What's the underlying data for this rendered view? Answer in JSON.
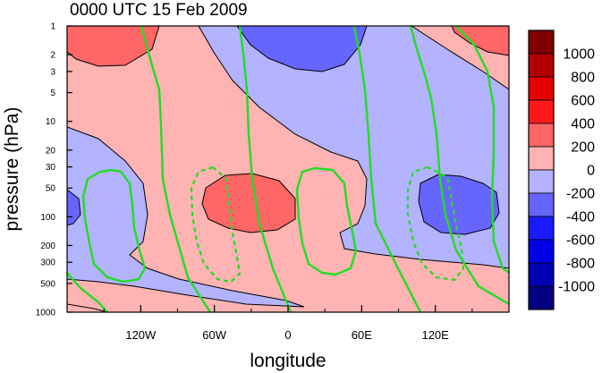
{
  "chart_data": {
    "type": "contour",
    "title": "0000 UTC 15 Feb 2009",
    "xlabel": "longitude",
    "ylabel": "pressure (hPa)",
    "x_ticks": [
      {
        "value": -120,
        "label": "120W"
      },
      {
        "value": -60,
        "label": "60W"
      },
      {
        "value": 0,
        "label": "0"
      },
      {
        "value": 60,
        "label": "60E"
      },
      {
        "value": 120,
        "label": "120E"
      }
    ],
    "y_ticks": [
      {
        "value": 1,
        "label": "1"
      },
      {
        "value": 2,
        "label": "2"
      },
      {
        "value": 3,
        "label": "3"
      },
      {
        "value": 5,
        "label": "5"
      },
      {
        "value": 10,
        "label": "10"
      },
      {
        "value": 20,
        "label": "20"
      },
      {
        "value": 30,
        "label": "30"
      },
      {
        "value": 50,
        "label": "50"
      },
      {
        "value": 100,
        "label": "100"
      },
      {
        "value": 200,
        "label": "200"
      },
      {
        "value": 300,
        "label": "300"
      },
      {
        "value": 500,
        "label": "500"
      },
      {
        "value": 1000,
        "label": "1000"
      }
    ],
    "xlim": [
      -180,
      180
    ],
    "ylim": [
      1000,
      1
    ],
    "y_scale": "log",
    "colorbar": {
      "labels": [
        "1000",
        "800",
        "600",
        "400",
        "200",
        "0",
        "-200",
        "-400",
        "-600",
        "-800",
        "-1000"
      ],
      "colors": [
        "#800000",
        "#b30000",
        "#e60000",
        "#ff1a1a",
        "#ff6666",
        "#ffb3b3",
        "#b3b3ff",
        "#6666ff",
        "#1a1aff",
        "#0000e6",
        "#0000b3",
        "#000080"
      ]
    },
    "line_color": "#22dd22"
  }
}
